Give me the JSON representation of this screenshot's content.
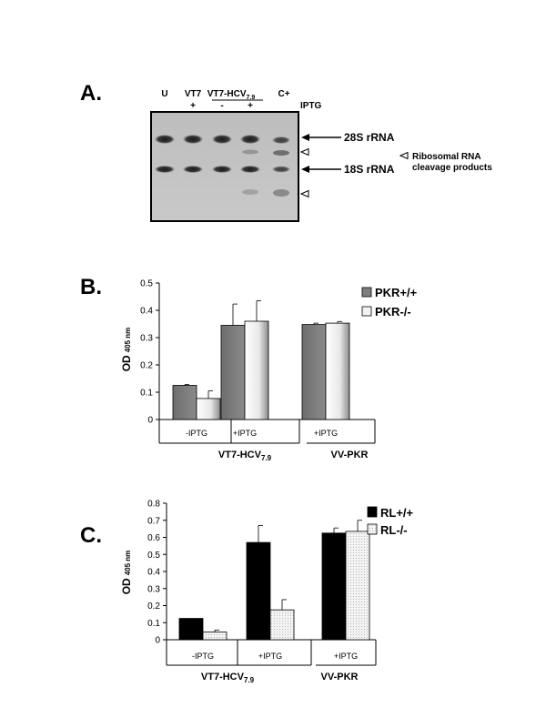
{
  "panel_a": {
    "label": "A.",
    "lanes": [
      "U",
      "VT7",
      "VT7-HCV",
      "C+"
    ],
    "lane_sub": "7.9",
    "iptg_row": [
      "+",
      "-",
      "+"
    ],
    "iptg_label": "IPTG",
    "band_28s": "28S rRNA",
    "band_18s": "18S rRNA",
    "cleavage_line1": "Ribosomal RNA",
    "cleavage_line2": "cleavage products"
  },
  "panel_b": {
    "label": "B.",
    "ylabel_main": "OD",
    "ylabel_sub": "405 nm",
    "groups": [
      "-IPTG",
      "+IPTG",
      "+IPTG"
    ],
    "big_group_1": "VT7-HCV",
    "big_group_1_sub": "7.9",
    "big_group_2": "VV-PKR"
  },
  "panel_c": {
    "label": "C.",
    "ylabel_main": "OD",
    "ylabel_sub": "405 nm",
    "groups": [
      "-IPTG",
      "+IPTG",
      "+IPTG"
    ],
    "big_group_1": "VT7-HCV",
    "big_group_1_sub": "7.9",
    "big_group_2": "VV-PKR"
  },
  "chart_data": [
    {
      "type": "bar",
      "title": "",
      "xlabel": "",
      "ylabel": "OD 405 nm",
      "categories": [
        "-IPTG",
        "+IPTG",
        "+IPTG"
      ],
      "group_labels": [
        "VT7-HCV7.9",
        "VV-PKR"
      ],
      "ylim": [
        0,
        0.5
      ],
      "yticks": [
        "0",
        "0.1",
        "0.2",
        "0.3",
        "0.4",
        "0.5"
      ],
      "ytick_values": [
        0,
        0.1,
        0.2,
        0.3,
        0.4,
        0.5
      ],
      "legend_position": "top-right",
      "grid": false,
      "series": [
        {
          "name": "PKR+/+",
          "values": [
            0.125,
            0.345,
            0.348
          ],
          "errors": [
            0.003,
            0.078,
            0.005
          ],
          "color": "#7f7f7f"
        },
        {
          "name": "PKR-/-",
          "values": [
            0.077,
            0.36,
            0.353
          ],
          "errors": [
            0.028,
            0.075,
            0.006
          ],
          "color": "#f2f2f2"
        }
      ]
    },
    {
      "type": "bar",
      "title": "",
      "xlabel": "",
      "ylabel": "OD 405 nm",
      "categories": [
        "-IPTG",
        "+IPTG",
        "+IPTG"
      ],
      "group_labels": [
        "VT7-HCV7.9",
        "VV-PKR"
      ],
      "ylim": [
        0,
        0.8
      ],
      "yticks": [
        "0",
        "0.1",
        "0.2",
        "0.3",
        "0.4",
        "0.5",
        "0.6",
        "0.7",
        "0.8"
      ],
      "ytick_values": [
        0,
        0.1,
        0.2,
        0.3,
        0.4,
        0.5,
        0.6,
        0.7,
        0.8
      ],
      "legend_position": "top-right",
      "grid": false,
      "series": [
        {
          "name": "RL+/+",
          "values": [
            0.125,
            0.57,
            0.625
          ],
          "errors": [
            0.0,
            0.1,
            0.03
          ],
          "color": "#000000"
        },
        {
          "name": "RL-/-",
          "values": [
            0.045,
            0.175,
            0.635
          ],
          "errors": [
            0.012,
            0.06,
            0.065
          ],
          "color": "#e6e6e6"
        }
      ]
    }
  ]
}
